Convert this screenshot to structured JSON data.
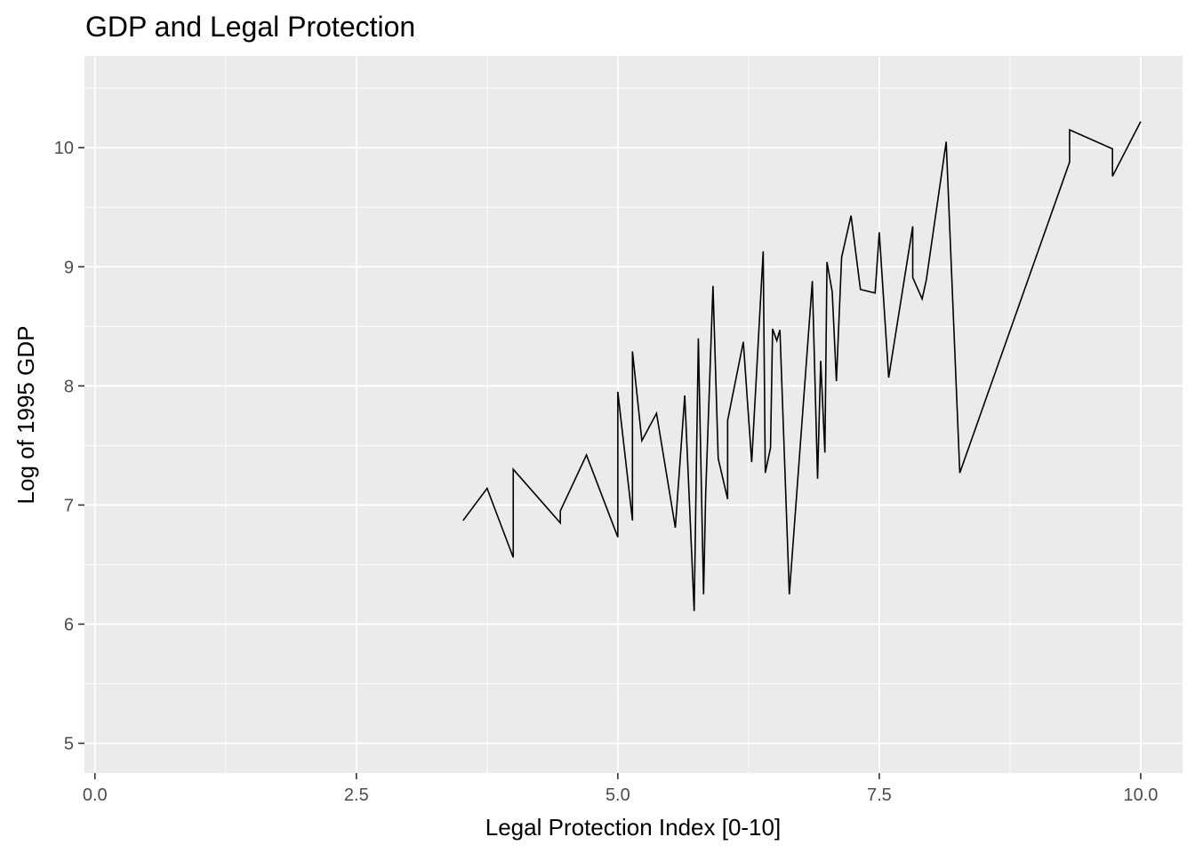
{
  "chart_data": {
    "type": "line",
    "title": "GDP and Legal Protection",
    "xlabel": "Legal Protection Index [0-10]",
    "ylabel": "Log of 1995 GDP",
    "xlim": [
      -0.1,
      10.4
    ],
    "ylim": [
      4.75,
      10.77
    ],
    "x_ticks": [
      0,
      2.5,
      5,
      7.5,
      10
    ],
    "x_tick_labels": [
      "0.0",
      "2.5",
      "5.0",
      "7.5",
      "10.0"
    ],
    "y_ticks": [
      5,
      6,
      7,
      8,
      9,
      10
    ],
    "y_tick_labels": [
      "5",
      "6",
      "7",
      "8",
      "9",
      "10"
    ],
    "grid": true,
    "legend": "none",
    "panel_color": "#ebebeb",
    "grid_color": "#ffffff",
    "line_color": "#000000",
    "series": [
      {
        "x": [
          3.52,
          3.75,
          4.0,
          4.0,
          4.45,
          4.45,
          4.7,
          5.0,
          5.0,
          5.14,
          5.14,
          5.23,
          5.37,
          5.55,
          5.64,
          5.73,
          5.77,
          5.82,
          5.84,
          5.91,
          5.96,
          6.05,
          6.05,
          6.2,
          6.28,
          6.39,
          6.41,
          6.46,
          6.48,
          6.52,
          6.55,
          6.64,
          6.86,
          6.91,
          6.94,
          6.98,
          7.0,
          7.05,
          7.09,
          7.14,
          7.23,
          7.32,
          7.46,
          7.5,
          7.59,
          7.82,
          7.82,
          7.91,
          7.95,
          8.14,
          8.27,
          9.32,
          9.32,
          9.73,
          9.73,
          10.0
        ],
        "y": [
          6.87,
          7.14,
          6.56,
          7.3,
          6.85,
          6.95,
          7.42,
          6.73,
          7.95,
          6.87,
          8.29,
          7.54,
          7.77,
          6.81,
          7.92,
          6.11,
          8.4,
          6.25,
          7.09,
          8.84,
          7.39,
          7.05,
          7.71,
          8.37,
          7.36,
          9.13,
          7.27,
          7.48,
          8.48,
          8.38,
          8.47,
          6.25,
          8.88,
          7.22,
          8.21,
          7.44,
          9.04,
          8.79,
          8.04,
          9.08,
          9.43,
          8.81,
          8.78,
          9.29,
          8.07,
          9.34,
          8.91,
          8.73,
          8.89,
          10.05,
          7.27,
          9.88,
          10.15,
          9.99,
          9.76,
          10.22
        ]
      }
    ]
  }
}
